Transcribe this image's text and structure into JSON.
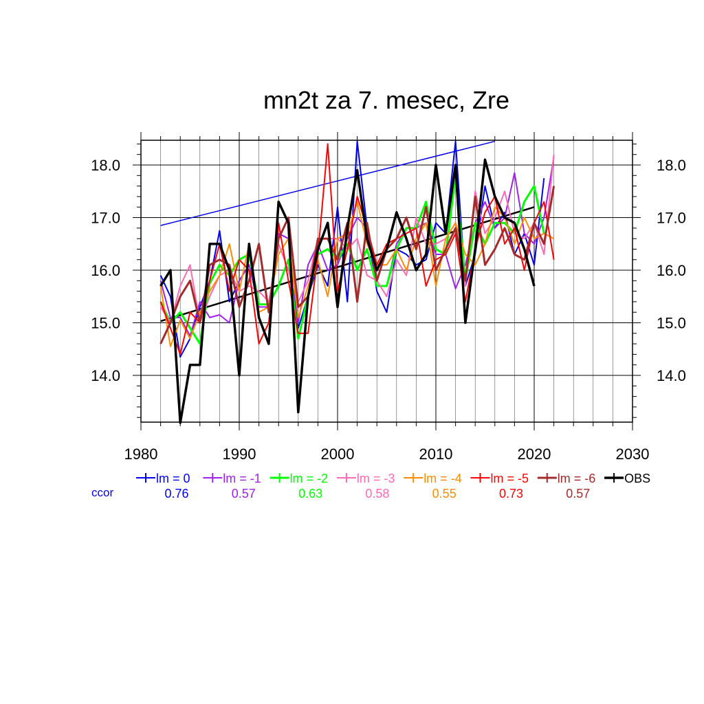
{
  "chart_data": {
    "type": "line",
    "title": "mn2t za 7. mesec, Zre",
    "xlabel": "",
    "ylabel": "",
    "xlim": [
      1980,
      2030
    ],
    "ylim": [
      13.1,
      18.5
    ],
    "x_ticks": [
      1980,
      1990,
      2000,
      2010,
      2020,
      2030
    ],
    "x_tick_labels": [
      "1980",
      "1990",
      "2000",
      "2010",
      "2020",
      "2030"
    ],
    "y_ticks": [
      14.0,
      15.0,
      16.0,
      17.0,
      18.0
    ],
    "y_tick_labels": [
      "14.0",
      "15.0",
      "16.0",
      "17.0",
      "18.0"
    ],
    "grid": true,
    "ccor_label": "ccor",
    "series": [
      {
        "name": "lm = 0",
        "color": "#0000ee",
        "width": 2,
        "ccor": "0.76",
        "x": [
          1982,
          1983,
          1984,
          1985,
          1986,
          1987,
          1988,
          1989,
          1990,
          1991,
          1992,
          1993,
          1994,
          1995,
          1996,
          1997,
          1998,
          1999,
          2000,
          2001,
          2002,
          2003,
          2004,
          2005,
          2006,
          2007,
          2008,
          2009,
          2010,
          2011,
          2012,
          2013,
          2014,
          2015,
          2016,
          2017,
          2018,
          2019,
          2020,
          2021
        ],
        "values": [
          15.9,
          15.5,
          14.35,
          14.7,
          15.3,
          15.8,
          16.75,
          15.4,
          15.8,
          16.1,
          15.3,
          15.3,
          16.7,
          16.6,
          14.9,
          15.5,
          16.1,
          15.7,
          17.2,
          15.4,
          18.45,
          16.8,
          15.6,
          15.2,
          16.4,
          16.3,
          16.1,
          16.2,
          16.9,
          16.7,
          18.45,
          15.7,
          16.3,
          17.6,
          16.8,
          17.1,
          16.3,
          16.7,
          16.1,
          17.75
        ]
      },
      {
        "name": "lm = -1",
        "color": "#a020f0",
        "width": 2,
        "ccor": "0.57",
        "x": [
          1982,
          1983,
          1984,
          1985,
          1986,
          1987,
          1988,
          1989,
          1990,
          1991,
          1992,
          1993,
          1994,
          1995,
          1996,
          1997,
          1998,
          1999,
          2000,
          2001,
          2002,
          2003,
          2004,
          2005,
          2006,
          2007,
          2008,
          2009,
          2010,
          2011,
          2012,
          2013,
          2014,
          2015,
          2016,
          2017,
          2018,
          2019,
          2020,
          2021,
          2022
        ],
        "values": [
          15.8,
          15.1,
          15.1,
          14.75,
          15.4,
          15.1,
          15.15,
          15.0,
          15.8,
          16.1,
          15.3,
          15.3,
          16.7,
          16.6,
          15.0,
          16.1,
          16.5,
          16.0,
          16.1,
          16.6,
          17.0,
          16.8,
          15.7,
          15.7,
          16.5,
          16.8,
          16.8,
          16.9,
          16.3,
          16.3,
          15.65,
          16.1,
          16.9,
          17.3,
          16.8,
          17.0,
          17.85,
          16.7,
          16.5,
          17.0,
          18.15
        ]
      },
      {
        "name": "lm = -2",
        "color": "#00ff00",
        "width": 3,
        "ccor": "0.63",
        "x": [
          1982,
          1983,
          1984,
          1985,
          1986,
          1987,
          1988,
          1989,
          1990,
          1991,
          1992,
          1993,
          1994,
          1995,
          1996,
          1997,
          1998,
          1999,
          2000,
          2001,
          2002,
          2003,
          2004,
          2005,
          2006,
          2007,
          2008,
          2009,
          2010,
          2011,
          2012,
          2013,
          2014,
          2015,
          2016,
          2017,
          2018,
          2019,
          2020,
          2021
        ],
        "values": [
          15.4,
          15.0,
          15.2,
          14.9,
          14.6,
          15.75,
          16.1,
          15.9,
          16.2,
          16.3,
          15.35,
          15.35,
          15.7,
          16.2,
          14.7,
          15.5,
          16.3,
          16.4,
          16.2,
          16.5,
          16.0,
          16.4,
          15.7,
          15.7,
          16.4,
          16.8,
          16.8,
          17.3,
          16.4,
          16.3,
          17.8,
          15.8,
          16.9,
          16.5,
          16.9,
          16.9,
          16.7,
          17.3,
          17.6,
          16.7
        ]
      },
      {
        "name": "lm = -3",
        "color": "#ff69b4",
        "width": 2,
        "ccor": "0.58",
        "x": [
          1982,
          1983,
          1984,
          1985,
          1986,
          1987,
          1988,
          1989,
          1990,
          1991,
          1992,
          1993,
          1994,
          1995,
          1996,
          1997,
          1998,
          1999,
          2000,
          2001,
          2002,
          2003,
          2004,
          2005,
          2006,
          2007,
          2008,
          2009,
          2010,
          2011,
          2012,
          2013,
          2014,
          2015,
          2016,
          2017,
          2018,
          2019,
          2020,
          2021,
          2022
        ],
        "values": [
          15.3,
          15.0,
          15.7,
          16.1,
          15.0,
          15.5,
          15.9,
          16.0,
          15.6,
          15.7,
          15.6,
          15.4,
          16.5,
          16.0,
          15.4,
          15.8,
          16.6,
          16.6,
          16.6,
          16.4,
          16.6,
          15.9,
          15.8,
          15.5,
          16.2,
          15.9,
          17.0,
          16.5,
          16.5,
          16.6,
          16.9,
          15.7,
          17.5,
          16.7,
          17.0,
          17.5,
          16.7,
          16.6,
          16.9,
          16.3,
          18.2
        ]
      },
      {
        "name": "lm = -4",
        "color": "#ff8c00",
        "width": 2,
        "ccor": "0.55",
        "x": [
          1982,
          1983,
          1984,
          1985,
          1986,
          1987,
          1988,
          1989,
          1990,
          1991,
          1992,
          1993,
          1994,
          1995,
          1996,
          1997,
          1998,
          1999,
          2000,
          2001,
          2002,
          2003,
          2004,
          2005,
          2006,
          2007,
          2008,
          2009,
          2010,
          2011,
          2012,
          2013,
          2014,
          2015,
          2016,
          2017,
          2018,
          2019,
          2020,
          2021,
          2022
        ],
        "values": [
          15.7,
          14.55,
          15.05,
          14.7,
          15.2,
          15.6,
          15.9,
          16.5,
          15.6,
          16.5,
          15.2,
          15.3,
          16.3,
          16.6,
          15.1,
          15.7,
          16.2,
          15.5,
          16.6,
          16.7,
          17.3,
          16.5,
          16.1,
          16.1,
          16.4,
          16.0,
          16.6,
          16.9,
          15.7,
          16.6,
          16.9,
          16.3,
          16.1,
          16.5,
          17.2,
          17.0,
          16.5,
          17.0,
          16.6,
          16.7,
          16.6
        ]
      },
      {
        "name": "lm = -5",
        "color": "#ff0000",
        "width": 2,
        "ccor": "0.73",
        "x": [
          1982,
          1983,
          1984,
          1985,
          1986,
          1987,
          1988,
          1989,
          1990,
          1991,
          1992,
          1993,
          1994,
          1995,
          1996,
          1997,
          1998,
          1999,
          2000,
          2001,
          2002,
          2003,
          2004,
          2005,
          2006,
          2007,
          2008,
          2009,
          2010,
          2011,
          2012,
          2013,
          2014,
          2015,
          2016,
          2017,
          2018,
          2019,
          2020,
          2021,
          2022
        ],
        "values": [
          15.4,
          14.9,
          14.4,
          15.2,
          15.0,
          15.8,
          16.5,
          15.6,
          16.2,
          16.0,
          14.6,
          15.0,
          16.9,
          15.8,
          14.8,
          14.8,
          16.3,
          18.4,
          15.6,
          16.4,
          17.4,
          16.8,
          16.1,
          16.5,
          16.6,
          16.7,
          16.8,
          15.7,
          16.2,
          16.3,
          16.7,
          15.4,
          16.4,
          17.1,
          17.4,
          16.5,
          16.8,
          16.0,
          16.9,
          17.3,
          16.2
        ]
      },
      {
        "name": "lm = -6",
        "color": "#a52a2a",
        "width": 3,
        "ccor": "0.57",
        "x": [
          1982,
          1983,
          1984,
          1985,
          1986,
          1987,
          1988,
          1989,
          1990,
          1991,
          1992,
          1993,
          1994,
          1995,
          1996,
          1997,
          1998,
          1999,
          2000,
          2001,
          2002,
          2003,
          2004,
          2005,
          2006,
          2007,
          2008,
          2009,
          2010,
          2011,
          2012,
          2013,
          2014,
          2015,
          2016,
          2017,
          2018,
          2019,
          2020,
          2021,
          2022
        ],
        "values": [
          14.6,
          15.0,
          15.5,
          15.8,
          15.0,
          16.1,
          16.2,
          16.1,
          15.3,
          15.8,
          16.5,
          15.2,
          16.6,
          17.0,
          15.3,
          15.5,
          16.6,
          16.6,
          16.2,
          16.9,
          15.4,
          16.9,
          15.8,
          16.4,
          16.6,
          17.0,
          16.4,
          17.2,
          16.0,
          16.4,
          16.8,
          15.8,
          17.4,
          16.1,
          16.4,
          16.8,
          16.3,
          16.2,
          16.9,
          16.5,
          17.6
        ]
      },
      {
        "name": "OBS",
        "color": "#000000",
        "width": 3.5,
        "ccor": "",
        "x": [
          1982,
          1983,
          1984,
          1985,
          1986,
          1987,
          1988,
          1989,
          1990,
          1991,
          1992,
          1993,
          1994,
          1995,
          1996,
          1997,
          1998,
          1999,
          2000,
          2001,
          2002,
          2003,
          2004,
          2005,
          2006,
          2007,
          2008,
          2009,
          2010,
          2011,
          2012,
          2013,
          2014,
          2015,
          2016,
          2017,
          2018,
          2019,
          2020
        ],
        "values": [
          15.7,
          16.0,
          13.1,
          14.2,
          14.2,
          16.5,
          16.5,
          16.0,
          14.0,
          16.5,
          15.1,
          14.6,
          17.3,
          16.9,
          13.3,
          15.5,
          16.4,
          16.9,
          15.3,
          16.8,
          17.9,
          16.6,
          16.0,
          16.4,
          17.1,
          16.6,
          16.0,
          16.3,
          18.0,
          16.7,
          18.0,
          15.0,
          16.4,
          18.1,
          17.4,
          17.0,
          16.9,
          16.4,
          15.7
        ]
      }
    ],
    "trend_lines": [
      {
        "color": "#000000",
        "width": 2.5,
        "x": [
          1982,
          2020
        ],
        "values": [
          15.03,
          17.2
        ]
      },
      {
        "color": "#0000ee",
        "width": 1.5,
        "x": [
          1982,
          2016
        ],
        "values": [
          16.85,
          18.45
        ]
      }
    ]
  }
}
